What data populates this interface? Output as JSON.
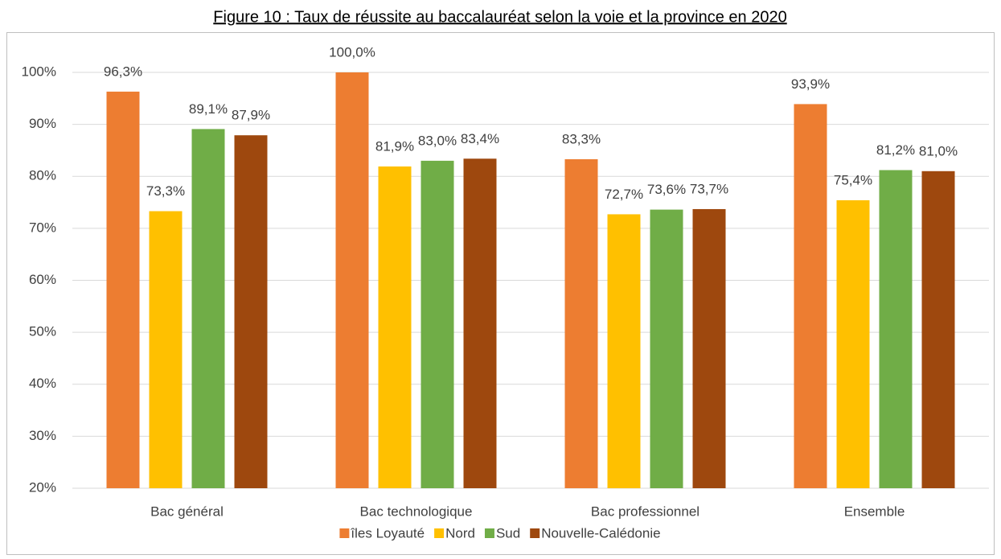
{
  "chart_data": {
    "type": "bar",
    "title": "Figure 10 : Taux de réussite au baccalauréat selon la voie et la province en 2020",
    "categories": [
      "Bac général",
      "Bac technologique",
      "Bac professionnel",
      "Ensemble"
    ],
    "series": [
      {
        "name": "îles Loyauté",
        "color": "#ED7D31",
        "values": [
          96.3,
          100.0,
          83.3,
          93.9
        ],
        "value_labels": [
          "96,3%",
          "100,0%",
          "83,3%",
          "93,9%"
        ]
      },
      {
        "name": "Nord",
        "color": "#FFC000",
        "values": [
          73.3,
          81.9,
          72.7,
          75.4
        ],
        "value_labels": [
          "73,3%",
          "81,9%",
          "72,7%",
          "75,4%"
        ]
      },
      {
        "name": "Sud",
        "color": "#70AD47",
        "values": [
          89.1,
          83.0,
          73.6,
          81.2
        ],
        "value_labels": [
          "89,1%",
          "83,0%",
          "73,6%",
          "81,2%"
        ]
      },
      {
        "name": "Nouvelle-Calédonie",
        "color": "#9E480E",
        "values": [
          87.9,
          83.4,
          73.7,
          81.0
        ],
        "value_labels": [
          "87,9%",
          "83,4%",
          "73,7%",
          "81,0%"
        ]
      }
    ],
    "ylim": [
      20,
      100
    ],
    "yticks": [
      {
        "value": 20,
        "label": "20%"
      },
      {
        "value": 30,
        "label": "30%"
      },
      {
        "value": 40,
        "label": "40%"
      },
      {
        "value": 50,
        "label": "50%"
      },
      {
        "value": 60,
        "label": "60%"
      },
      {
        "value": 70,
        "label": "70%"
      },
      {
        "value": 80,
        "label": "80%"
      },
      {
        "value": 90,
        "label": "90%"
      },
      {
        "value": 100,
        "label": "100%"
      }
    ],
    "grid": true,
    "legend": "bottom"
  }
}
